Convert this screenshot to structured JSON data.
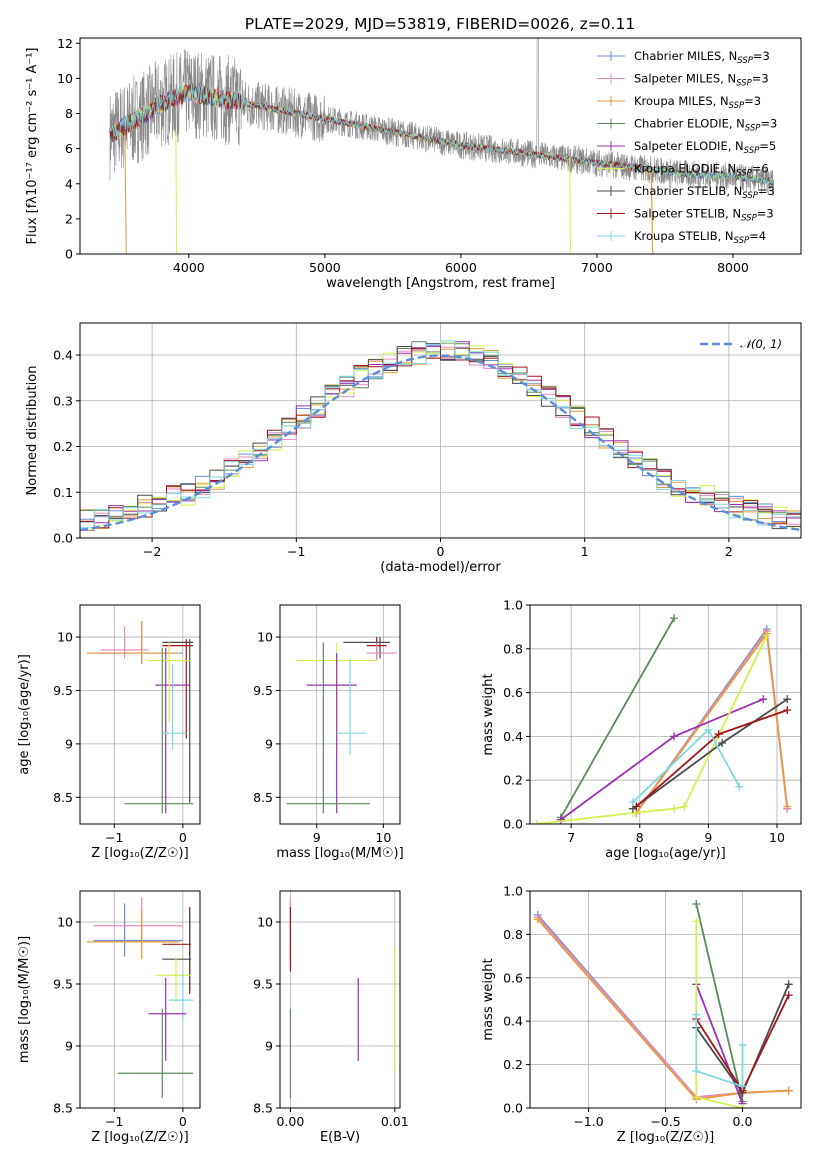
{
  "figure": {
    "title": "PLATE=2029, MJD=53819, FIBERID=0026, z=0.11"
  },
  "palette": [
    "#6f8fd6",
    "#e78ac3",
    "#e89a3c",
    "#5a8a5a",
    "#9b30b3",
    "#d4f04e",
    "#4a4a4a",
    "#a3141b",
    "#80d8e0"
  ],
  "chart_data": [
    {
      "id": "spectrum",
      "type": "line",
      "xlabel": "wavelength [Angstrom, rest frame]",
      "ylabel": "Flux [fλ10⁻¹⁷ erg cm⁻² s⁻¹ A⁻¹]",
      "xlim": [
        3200,
        8500
      ],
      "ylim": [
        0,
        12.3
      ],
      "xticks": [
        4000,
        5000,
        6000,
        7000,
        8000
      ],
      "yticks": [
        0,
        2,
        4,
        6,
        8,
        10,
        12
      ],
      "grid": false,
      "legend_position": "top-right",
      "legend": [
        {
          "label": "Chabrier MILES, N",
          "sub": "SSP",
          "val": "=3"
        },
        {
          "label": "Salpeter MILES, N",
          "sub": "SSP",
          "val": "=3"
        },
        {
          "label": "Kroupa MILES, N",
          "sub": "SSP",
          "val": "=3"
        },
        {
          "label": "Chabrier ELODIE, N",
          "sub": "SSP",
          "val": "=3"
        },
        {
          "label": "Salpeter ELODIE, N",
          "sub": "SSP",
          "val": "=5"
        },
        {
          "label": "Kroupa ELODIE, N",
          "sub": "SSP",
          "val": "=6"
        },
        {
          "label": "Chabrier STELIB, N",
          "sub": "SSP",
          "val": "=3"
        },
        {
          "label": "Salpeter STELIB, N",
          "sub": "SSP",
          "val": "=3"
        },
        {
          "label": "Kroupa STELIB, N",
          "sub": "SSP",
          "val": "=4"
        }
      ],
      "continuum": {
        "x": [
          3420,
          3600,
          3800,
          4000,
          4200,
          4400,
          4600,
          4800,
          5000,
          5200,
          5400,
          5600,
          5800,
          6000,
          6200,
          6400,
          6600,
          6800,
          7000,
          7200,
          7400,
          7600,
          7800,
          8000,
          8200,
          8300
        ],
        "y": [
          6.8,
          7.6,
          8.6,
          9.2,
          8.9,
          8.6,
          8.3,
          8.0,
          7.7,
          7.4,
          7.1,
          6.8,
          6.5,
          6.2,
          6.0,
          5.8,
          5.6,
          5.4,
          5.2,
          5.0,
          4.8,
          4.6,
          4.5,
          4.4,
          4.2,
          4.1
        ]
      }
    },
    {
      "id": "residuals",
      "type": "line",
      "xlabel": "(data-model)/error",
      "ylabel": "Normed distribution",
      "xlim": [
        -2.5,
        2.5
      ],
      "ylim": [
        0,
        0.47
      ],
      "xticks": [
        -2,
        -1,
        0,
        1,
        2
      ],
      "yticks": [
        0.0,
        0.1,
        0.2,
        0.3,
        0.4
      ],
      "grid": true,
      "legend_position": "top-right",
      "legend": [
        {
          "label": "𝒩(0, 1)"
        }
      ],
      "gaussian": {
        "mean": 0,
        "sigma": 1
      }
    },
    {
      "id": "age_vs_Z",
      "type": "scatter",
      "xlabel": "Z [log₁₀(Z/Z☉)]",
      "ylabel": "age  [log₁₀(age/yr)]",
      "xlim": [
        -1.5,
        0.25
      ],
      "ylim": [
        8.25,
        10.3
      ],
      "xticks": [
        -1,
        0
      ],
      "yticks": [
        8.5,
        9.0,
        9.5,
        10.0
      ],
      "grid": true,
      "points": [
        {
          "c": 0,
          "x": -0.6,
          "y": 9.85,
          "ex": [
            -1.3,
            0.0
          ],
          "ey": [
            9.75,
            10.15
          ]
        },
        {
          "c": 1,
          "x": -0.85,
          "y": 9.88,
          "ex": [
            -1.2,
            -0.5
          ],
          "ey": [
            9.8,
            10.1
          ]
        },
        {
          "c": 2,
          "x": -0.6,
          "y": 9.85,
          "ex": [
            -1.4,
            -0.05
          ],
          "ey": [
            9.75,
            10.15
          ]
        },
        {
          "c": 6,
          "x": 0.1,
          "y": 9.95,
          "ex": [
            -0.3,
            0.15
          ],
          "ey": [
            8.45,
            9.98
          ]
        },
        {
          "c": 7,
          "x": 0.05,
          "y": 9.92,
          "ex": [
            -0.3,
            0.15
          ],
          "ey": [
            9.05,
            9.98
          ]
        },
        {
          "c": 4,
          "x": -0.25,
          "y": 9.55,
          "ex": [
            -0.4,
            0.1
          ],
          "ey": [
            8.35,
            9.9
          ]
        },
        {
          "c": 5,
          "x": -0.2,
          "y": 9.78,
          "ex": [
            -0.5,
            0.1
          ],
          "ey": [
            9.2,
            9.95
          ]
        },
        {
          "c": 8,
          "x": -0.15,
          "y": 9.1,
          "ex": [
            -0.3,
            0.05
          ],
          "ey": [
            8.95,
            9.75
          ]
        },
        {
          "c": 3,
          "x": -0.3,
          "y": 8.44,
          "ex": [
            -0.85,
            0.15
          ],
          "ey": [
            8.35,
            9.9
          ]
        }
      ]
    },
    {
      "id": "age_vs_mass",
      "type": "scatter",
      "xlabel": "mass [log₁₀(M/M☉)]",
      "ylabel": "",
      "xlim": [
        8.45,
        10.25
      ],
      "ylim": [
        8.25,
        10.3
      ],
      "xticks": [
        9,
        10
      ],
      "yticks": [
        8.5,
        9.0,
        9.5,
        10.0
      ],
      "grid": true,
      "points": [
        {
          "c": 6,
          "x": 9.95,
          "y": 9.95,
          "ex": [
            9.4,
            10.1
          ],
          "ey": [
            9.8,
            10.0
          ]
        },
        {
          "c": 7,
          "x": 9.9,
          "y": 9.92,
          "ex": [
            9.75,
            10.05
          ],
          "ey": [
            9.8,
            10.0
          ]
        },
        {
          "c": 1,
          "x": 9.9,
          "y": 9.85,
          "ex": [
            9.75,
            10.2
          ],
          "ey": [
            9.78,
            9.95
          ]
        },
        {
          "c": 5,
          "x": 9.3,
          "y": 9.78,
          "ex": [
            8.7,
            9.9
          ],
          "ey": [
            9.2,
            9.95
          ]
        },
        {
          "c": 4,
          "x": 9.3,
          "y": 9.55,
          "ex": [
            8.85,
            9.6
          ],
          "ey": [
            8.35,
            9.85
          ]
        },
        {
          "c": 8,
          "x": 9.5,
          "y": 9.1,
          "ex": [
            9.3,
            9.75
          ],
          "ey": [
            8.9,
            9.8
          ]
        },
        {
          "c": 3,
          "x": 9.1,
          "y": 8.44,
          "ex": [
            8.55,
            9.8
          ],
          "ey": [
            8.35,
            9.95
          ]
        }
      ]
    },
    {
      "id": "weight_vs_age",
      "type": "line",
      "xlabel": "age  [log₁₀(age/yr)]",
      "ylabel": "mass weight",
      "xlim": [
        6.4,
        10.35
      ],
      "ylim": [
        0,
        1.0
      ],
      "xticks": [
        7,
        8,
        9,
        10
      ],
      "yticks": [
        0.0,
        0.2,
        0.4,
        0.6,
        0.8,
        1.0
      ],
      "grid": true,
      "series": [
        {
          "c": 0,
          "x": [
            7.95,
            9.85,
            10.15
          ],
          "y": [
            0.05,
            0.89,
            0.07
          ]
        },
        {
          "c": 1,
          "x": [
            7.95,
            9.85,
            10.15
          ],
          "y": [
            0.05,
            0.88,
            0.07
          ]
        },
        {
          "c": 2,
          "x": [
            7.95,
            9.85,
            10.15
          ],
          "y": [
            0.05,
            0.87,
            0.08
          ]
        },
        {
          "c": 3,
          "x": [
            6.85,
            8.5
          ],
          "y": [
            0.03,
            0.94
          ]
        },
        {
          "c": 4,
          "x": [
            6.85,
            8.5,
            9.8
          ],
          "y": [
            0.02,
            0.4,
            0.57
          ]
        },
        {
          "c": 5,
          "x": [
            6.5,
            7.9,
            8.5,
            8.65,
            9.85
          ],
          "y": [
            0.0,
            0.05,
            0.07,
            0.08,
            0.86
          ]
        },
        {
          "c": 6,
          "x": [
            7.9,
            9.2,
            10.15
          ],
          "y": [
            0.07,
            0.37,
            0.57
          ]
        },
        {
          "c": 7,
          "x": [
            7.95,
            9.15,
            10.15
          ],
          "y": [
            0.08,
            0.41,
            0.52
          ]
        },
        {
          "c": 8,
          "x": [
            7.9,
            9.0,
            9.45
          ],
          "y": [
            0.1,
            0.43,
            0.17
          ]
        }
      ]
    },
    {
      "id": "mass_vs_Z",
      "type": "scatter",
      "xlabel": "Z [log₁₀(Z/Z☉)]",
      "ylabel": "mass [log₁₀(M/M☉)]",
      "xlim": [
        -1.5,
        0.25
      ],
      "ylim": [
        8.5,
        10.25
      ],
      "xticks": [
        -1,
        0
      ],
      "yticks": [
        8.5,
        9.0,
        9.5,
        10.0
      ],
      "grid": true,
      "points": [
        {
          "c": 0,
          "x": -0.85,
          "y": 9.85,
          "ex": [
            -1.3,
            0.0
          ],
          "ey": [
            9.72,
            10.15
          ]
        },
        {
          "c": 1,
          "x": -0.6,
          "y": 9.97,
          "ex": [
            -1.3,
            0.0
          ],
          "ey": [
            9.8,
            10.2
          ]
        },
        {
          "c": 2,
          "x": -0.6,
          "y": 9.84,
          "ex": [
            -1.4,
            -0.05
          ],
          "ey": [
            9.7,
            10.1
          ]
        },
        {
          "c": 7,
          "x": 0.1,
          "y": 9.82,
          "ex": [
            -0.3,
            0.12
          ],
          "ey": [
            9.42,
            10.12
          ]
        },
        {
          "c": 6,
          "x": 0.1,
          "y": 9.7,
          "ex": [
            -0.3,
            0.12
          ],
          "ey": [
            9.45,
            10.1
          ]
        },
        {
          "c": 5,
          "x": -0.1,
          "y": 9.57,
          "ex": [
            -0.4,
            0.12
          ],
          "ey": [
            9.35,
            9.72
          ]
        },
        {
          "c": 8,
          "x": 0.0,
          "y": 9.37,
          "ex": [
            -0.2,
            0.15
          ],
          "ey": [
            9.2,
            9.6
          ]
        },
        {
          "c": 4,
          "x": -0.25,
          "y": 9.26,
          "ex": [
            -0.5,
            0.05
          ],
          "ey": [
            8.88,
            9.55
          ]
        },
        {
          "c": 3,
          "x": -0.3,
          "y": 8.78,
          "ex": [
            -0.95,
            0.15
          ],
          "ey": [
            8.58,
            9.3
          ]
        }
      ]
    },
    {
      "id": "mass_vs_ebv",
      "type": "scatter",
      "xlabel": "E(B-V)",
      "ylabel": "",
      "xlim": [
        -0.001,
        0.0105
      ],
      "ylim": [
        8.5,
        10.25
      ],
      "xticks": [
        0.0,
        0.01
      ],
      "xticklabels": [
        "0.00",
        "0.01"
      ],
      "yticks": [
        8.5,
        9.0,
        9.5,
        10.0
      ],
      "grid": true,
      "points": [
        {
          "c": 0,
          "x": 0.0,
          "y": 9.9,
          "ex": [
            0.0,
            0.0
          ],
          "ey": [
            9.7,
            10.15
          ]
        },
        {
          "c": 1,
          "x": 0.0,
          "y": 10.0,
          "ex": [
            0.0,
            0.0
          ],
          "ey": [
            9.8,
            10.2
          ]
        },
        {
          "c": 7,
          "x": 0.0,
          "y": 9.9,
          "ex": [
            0.0,
            0.0
          ],
          "ey": [
            9.6,
            10.12
          ]
        },
        {
          "c": 3,
          "x": 0.0,
          "y": 8.9,
          "ex": [
            0.0,
            0.0
          ],
          "ey": [
            8.58,
            9.3
          ]
        },
        {
          "c": 4,
          "x": 0.0065,
          "y": 9.25,
          "ex": [
            0.0065,
            0.0065
          ],
          "ey": [
            8.88,
            9.55
          ]
        },
        {
          "c": 5,
          "x": 0.01,
          "y": 9.3,
          "ex": [
            0.01,
            0.01
          ],
          "ey": [
            8.8,
            9.8
          ]
        }
      ]
    },
    {
      "id": "weight_vs_Z",
      "type": "line",
      "xlabel": "Z [log₁₀(Z/Z☉)]",
      "ylabel": "mass weight",
      "xlim": [
        -1.38,
        0.38
      ],
      "ylim": [
        0,
        1.0
      ],
      "xticks": [
        -1.0,
        -0.5,
        0.0
      ],
      "xticklabels": [
        "−1.0",
        "−0.5",
        "0.0"
      ],
      "yticks": [
        0.0,
        0.2,
        0.4,
        0.6,
        0.8,
        1.0
      ],
      "grid": true,
      "series": [
        {
          "c": 0,
          "x": [
            -1.33,
            -0.3,
            0.0,
            0.3
          ],
          "y": [
            0.89,
            0.05,
            0.07,
            0.08
          ]
        },
        {
          "c": 1,
          "x": [
            -1.33,
            -0.3,
            0.0,
            0.3
          ],
          "y": [
            0.88,
            0.05,
            0.07,
            0.08
          ]
        },
        {
          "c": 2,
          "x": [
            -1.33,
            -0.3,
            0.0,
            0.3
          ],
          "y": [
            0.87,
            0.04,
            0.07,
            0.08
          ]
        },
        {
          "c": 3,
          "x": [
            -0.3,
            0.0
          ],
          "y": [
            0.94,
            0.03
          ]
        },
        {
          "c": 4,
          "x": [
            -0.3,
            0.0
          ],
          "y": [
            0.57,
            0.02
          ]
        },
        {
          "c": 5,
          "x": [
            -0.3,
            -0.3,
            0.0
          ],
          "y": [
            0.86,
            0.05,
            0.0
          ]
        },
        {
          "c": 6,
          "x": [
            -0.3,
            0.0,
            0.3
          ],
          "y": [
            0.37,
            0.07,
            0.57
          ]
        },
        {
          "c": 7,
          "x": [
            -0.3,
            0.0,
            0.3
          ],
          "y": [
            0.41,
            0.08,
            0.52
          ]
        },
        {
          "c": 8,
          "x": [
            -0.3,
            -0.3,
            0.0,
            0.0
          ],
          "y": [
            0.43,
            0.17,
            0.1,
            0.29
          ]
        }
      ]
    }
  ]
}
